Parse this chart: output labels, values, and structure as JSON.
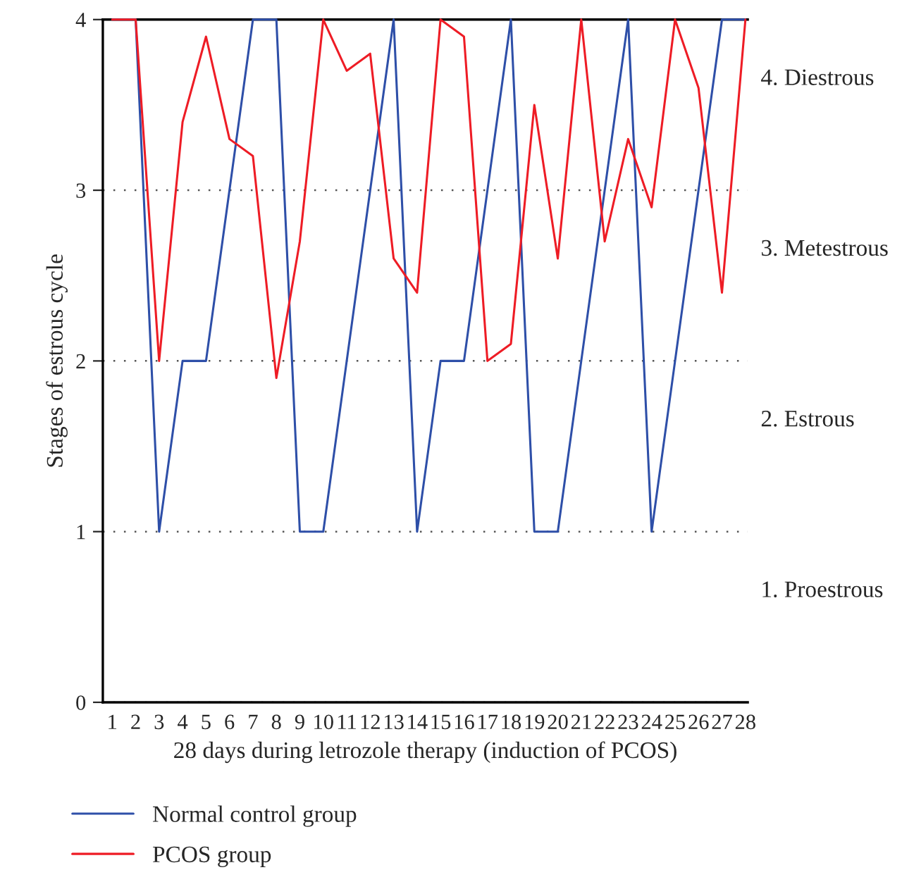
{
  "chart_data": {
    "type": "line",
    "xlabel": "28 days during letrozole therapy (induction of PCOS)",
    "ylabel": "Stages of estrous cycle",
    "categories": [
      "1",
      "2",
      "3",
      "4",
      "5",
      "6",
      "7",
      "8",
      "9",
      "10",
      "11",
      "12",
      "13",
      "14",
      "15",
      "16",
      "17",
      "18",
      "19",
      "20",
      "21",
      "22",
      "23",
      "24",
      "25",
      "26",
      "27",
      "28"
    ],
    "series": [
      {
        "name": "Normal control group",
        "color": "#2e4fa8",
        "values": [
          4,
          4,
          1,
          2,
          2,
          3,
          4,
          4,
          1,
          1,
          2,
          3,
          4,
          1,
          2,
          2,
          3,
          4,
          1,
          1,
          2,
          3,
          4,
          1,
          2,
          3,
          4,
          4
        ]
      },
      {
        "name": "PCOS group",
        "color": "#ee1c25",
        "values": [
          4,
          4,
          2,
          3.4,
          3.9,
          3.3,
          3.2,
          1.9,
          2.7,
          4,
          3.7,
          3.8,
          2.6,
          2.4,
          4,
          3.9,
          2,
          2.1,
          3.5,
          2.6,
          4,
          2.7,
          3.3,
          2.9,
          4,
          3.6,
          2.4,
          4
        ]
      }
    ],
    "ylim": [
      0,
      4
    ],
    "yticks": [
      0,
      1,
      2,
      3,
      4
    ],
    "grid": "y",
    "legend": "bottom",
    "marker": "none",
    "line_style": "solid",
    "annotations": [
      "4. Diestrous",
      "3. Metestrous",
      "2. Estrous",
      "1. Proestrous"
    ]
  }
}
